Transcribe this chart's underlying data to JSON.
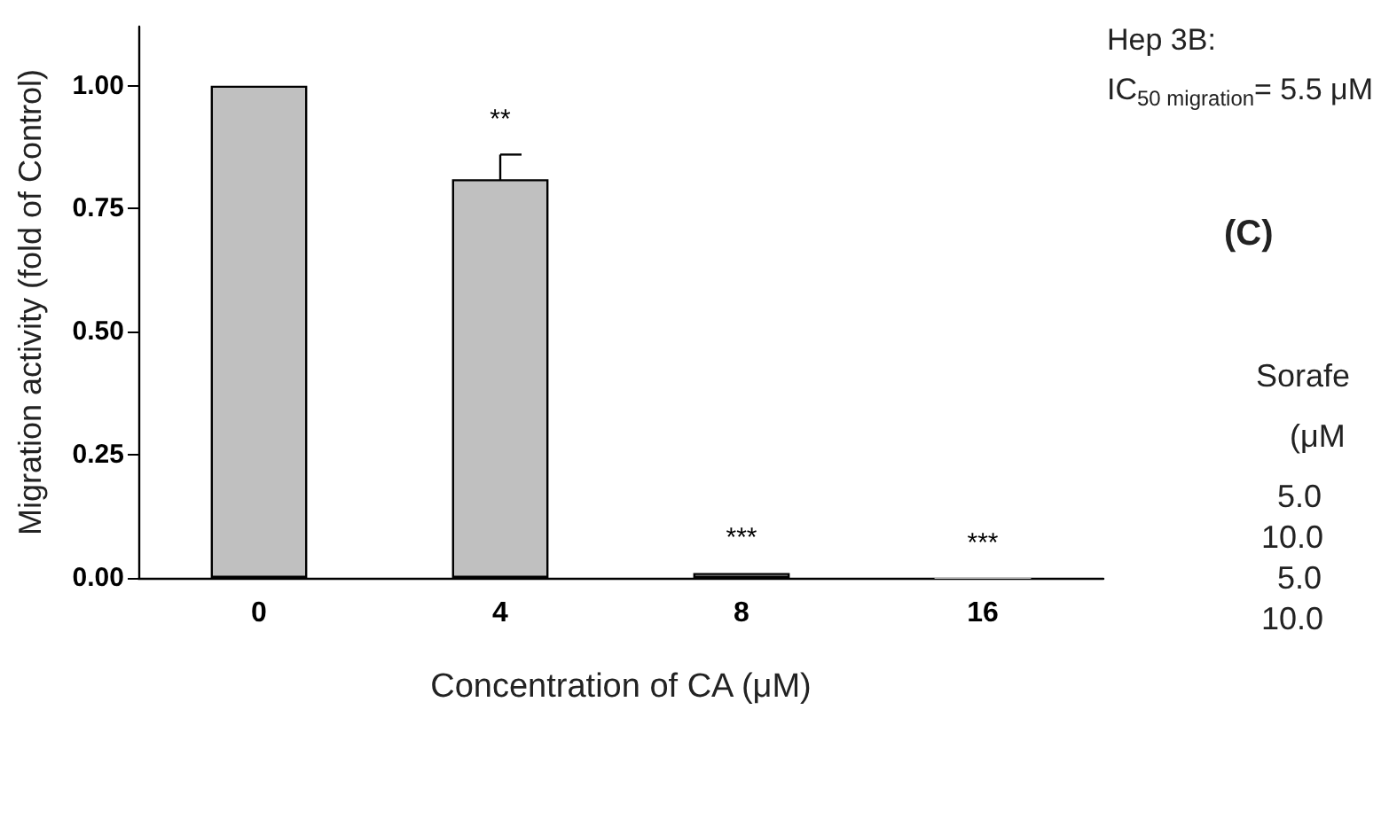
{
  "chart_data": {
    "type": "bar",
    "xlabel": "Concentration of CA (μM)",
    "ylabel": "Migration activity (fold of Control)",
    "categories": [
      "0",
      "4",
      "8",
      "16"
    ],
    "values": [
      1.0,
      0.81,
      0.01,
      0.0
    ],
    "errors": [
      null,
      0.05,
      null,
      null
    ],
    "color": "#c0c0c0",
    "ylim": [
      0,
      1.12
    ],
    "yticks": [
      {
        "value": 0,
        "label": "0.00"
      },
      {
        "value": 0.25,
        "label": "0.25"
      },
      {
        "value": 0.5,
        "label": "0.50"
      },
      {
        "value": 0.75,
        "label": "0.75"
      },
      {
        "value": 1,
        "label": "1.00"
      }
    ],
    "grid": false,
    "annotations": [
      {
        "text": "**",
        "x": "4",
        "y": 0.86
      },
      {
        "text": "***",
        "x": "8",
        "y": 0.01
      },
      {
        "text": "***",
        "x": "16",
        "y": 0.0
      },
      "Hep 3B:",
      "IC$_{50 migration}$= 5.5 μM",
      "(C)",
      "Sorafe",
      "(μM",
      "5.0",
      "10.0",
      "5.0",
      "10.0"
    ]
  }
}
